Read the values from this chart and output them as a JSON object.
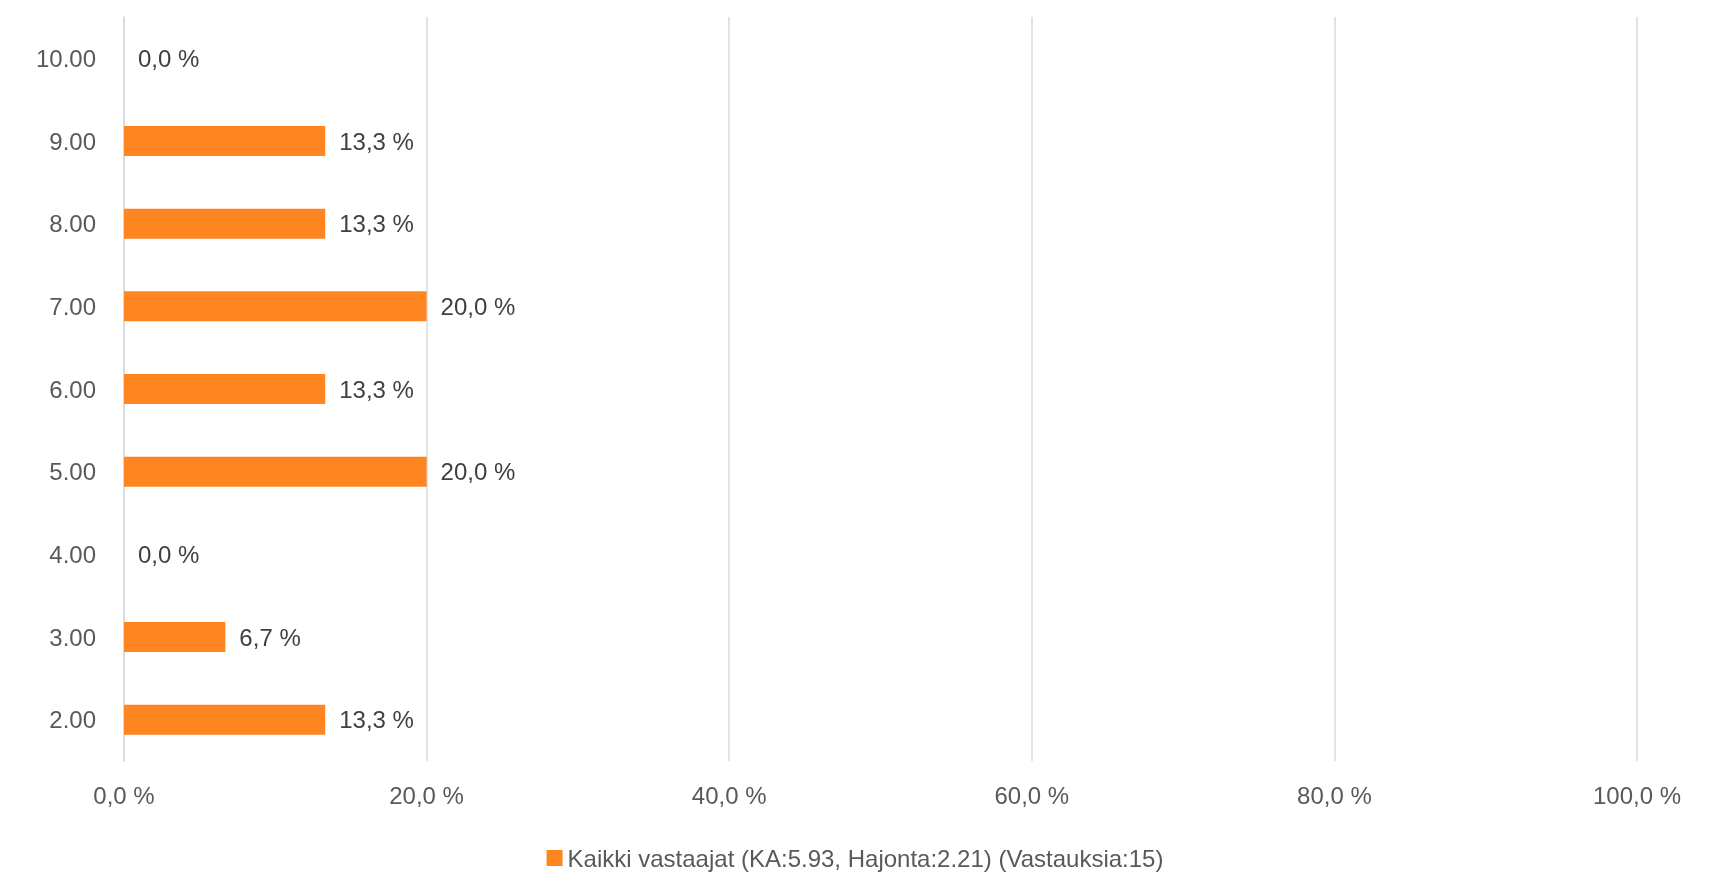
{
  "chart_data": {
    "type": "bar",
    "orientation": "horizontal",
    "categories": [
      "10.00",
      "9.00",
      "8.00",
      "7.00",
      "6.00",
      "5.00",
      "4.00",
      "3.00",
      "2.00"
    ],
    "series": [
      {
        "name": "Kaikki vastaajat (KA:5.93, Hajonta:2.21) (Vastauksia:15)",
        "color": "#ff8521",
        "values": [
          0,
          13.3,
          13.3,
          20,
          13.3,
          20,
          0,
          6.7,
          13.3
        ],
        "value_labels": [
          "0,0 %",
          "13,3 %",
          "13,3 %",
          "20,0 %",
          "13,3 %",
          "20,0 %",
          "0,0 %",
          "6,7 %",
          "13,3 %"
        ]
      }
    ],
    "xlim": [
      0,
      100
    ],
    "xticks": [
      {
        "value": 0,
        "label": "0,0 %"
      },
      {
        "value": 20,
        "label": "20,0 %"
      },
      {
        "value": 40,
        "label": "40,0 %"
      },
      {
        "value": 60,
        "label": "60,0 %"
      },
      {
        "value": 80,
        "label": "80,0 %"
      },
      {
        "value": 100,
        "label": "100,0 %"
      }
    ],
    "grid": "x",
    "legend": "bottom"
  }
}
